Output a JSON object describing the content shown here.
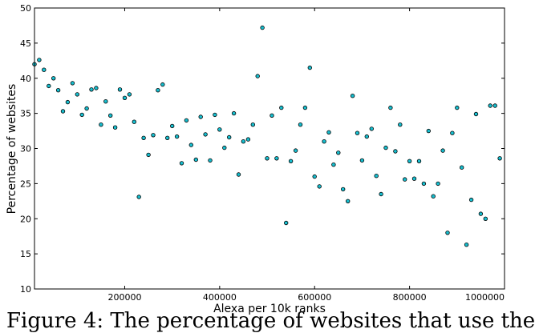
{
  "caption": "Figure 4: The percentage of websites that use the",
  "chart_data": {
    "type": "scatter",
    "xlabel": "Alexa per 10k ranks",
    "ylabel": "Percentage of websites",
    "xlim": [
      10000,
      1000000
    ],
    "ylim": [
      10,
      50
    ],
    "xticks": [
      200000,
      400000,
      600000,
      800000,
      1000000
    ],
    "yticks": [
      10,
      15,
      20,
      25,
      30,
      35,
      40,
      45,
      50
    ],
    "grid": false,
    "marker_color": "#17becf",
    "x": [
      10000,
      20000,
      30000,
      40000,
      50000,
      60000,
      70000,
      80000,
      90000,
      100000,
      110000,
      120000,
      130000,
      140000,
      150000,
      160000,
      170000,
      180000,
      190000,
      200000,
      210000,
      220000,
      230000,
      240000,
      250000,
      260000,
      270000,
      280000,
      290000,
      300000,
      310000,
      320000,
      330000,
      340000,
      350000,
      360000,
      370000,
      380000,
      390000,
      400000,
      410000,
      420000,
      430000,
      440000,
      450000,
      460000,
      470000,
      480000,
      490000,
      500000,
      510000,
      520000,
      530000,
      540000,
      550000,
      560000,
      570000,
      580000,
      590000,
      600000,
      610000,
      620000,
      630000,
      640000,
      650000,
      660000,
      670000,
      680000,
      690000,
      700000,
      710000,
      720000,
      730000,
      740000,
      750000,
      760000,
      770000,
      780000,
      790000,
      800000,
      810000,
      820000,
      830000,
      840000,
      850000,
      860000,
      870000,
      880000,
      890000,
      900000,
      910000,
      920000,
      930000,
      940000,
      950000,
      960000,
      970000,
      980000,
      990000
    ],
    "y": [
      42.0,
      42.6,
      41.2,
      38.9,
      40.0,
      38.3,
      35.3,
      36.6,
      39.3,
      37.7,
      34.8,
      35.7,
      38.4,
      38.6,
      33.4,
      36.7,
      34.7,
      33.0,
      38.4,
      37.2,
      37.7,
      33.8,
      23.1,
      31.5,
      29.1,
      31.9,
      38.3,
      39.1,
      31.5,
      33.2,
      31.7,
      27.9,
      34.0,
      30.5,
      28.4,
      34.5,
      32.0,
      28.3,
      34.8,
      32.7,
      30.1,
      31.6,
      35.0,
      26.3,
      31.0,
      31.3,
      33.4,
      40.3,
      47.2,
      28.6,
      34.7,
      28.6,
      35.8,
      19.4,
      28.2,
      29.7,
      33.4,
      35.8,
      41.5,
      26.0,
      24.6,
      31.0,
      32.3,
      27.7,
      29.4,
      24.2,
      22.5,
      37.5,
      32.2,
      28.3,
      31.7,
      32.8,
      26.1,
      23.5,
      30.1,
      35.8,
      29.6,
      33.4,
      25.6,
      28.2,
      25.7,
      28.2,
      25.0,
      32.5,
      23.2,
      25.0,
      29.7,
      18.0,
      32.2,
      35.8,
      27.3,
      16.3,
      22.7,
      34.9,
      20.7,
      20.0,
      36.1,
      36.1,
      28.6
    ]
  }
}
